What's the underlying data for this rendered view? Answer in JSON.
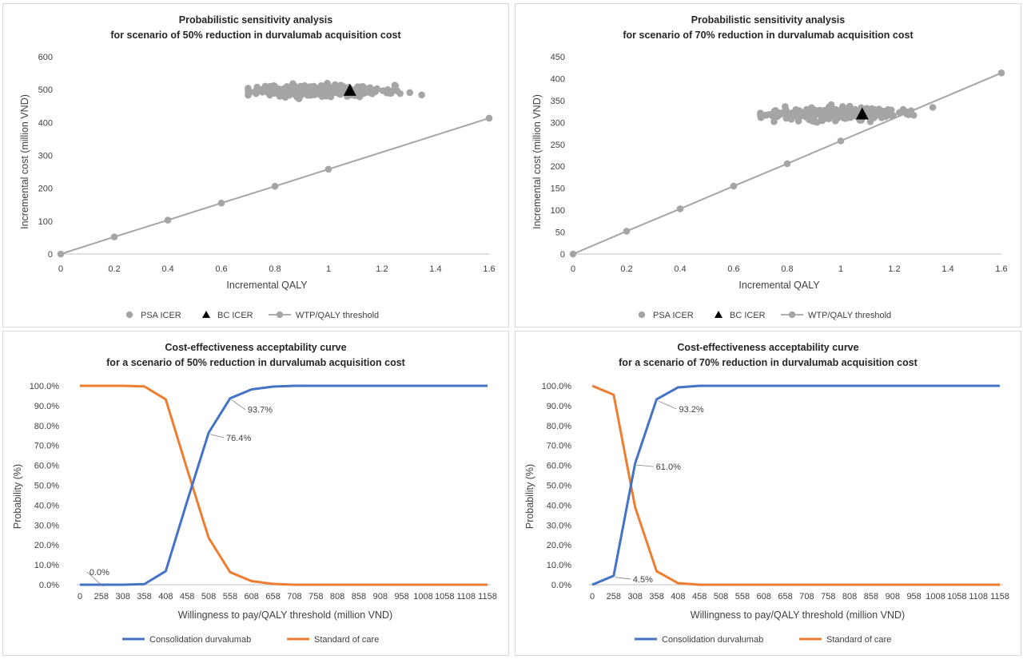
{
  "chart_data": [
    {
      "id": "p1",
      "type": "scatter",
      "title": [
        "Probabilistic sensitivity analysis",
        "for scenario of 50% reduction in durvalumab acquisition cost"
      ],
      "xlabel": "Incremental QALY",
      "ylabel": "Incremental cost (million VND)",
      "xlim": [
        0,
        1.6
      ],
      "ylim": [
        0,
        600
      ],
      "xticks": [
        0,
        0.2,
        0.4,
        0.6,
        0.8,
        1,
        1.2,
        1.4,
        1.6
      ],
      "yticks": [
        0,
        100,
        200,
        300,
        400,
        500,
        600
      ],
      "xtick_labels": [
        "0",
        "0.2",
        "0.4",
        "0.6",
        "0.8",
        "1",
        "1.2",
        "1.4",
        "1.6"
      ],
      "ytick_labels": [
        "0",
        "100",
        "200",
        "300",
        "400",
        "500",
        "600"
      ],
      "grid": false,
      "legend_position": "bottom",
      "psa_cloud": {
        "x_range": [
          0.7,
          1.37
        ],
        "y_center": 497,
        "y_spread": 15,
        "points": 320,
        "seed": 11
      },
      "series": [
        {
          "name": "PSA ICER",
          "kind": "points",
          "color": "#a5a5a5"
        },
        {
          "name": "BC ICER",
          "kind": "triangle",
          "color": "#000000",
          "x": [
            1.08
          ],
          "y": [
            496
          ]
        },
        {
          "name": "WTP/QALY threshold",
          "kind": "line-markers",
          "color": "#a5a5a5",
          "x": [
            0,
            0.2,
            0.4,
            0.6,
            0.8,
            1.0,
            1.6
          ],
          "y": [
            0,
            52,
            103,
            155,
            206,
            258,
            413
          ]
        }
      ]
    },
    {
      "id": "p2",
      "type": "scatter",
      "title": [
        "Probabilistic sensitivity analysis",
        "for scenario of 70% reduction in durvalumab acquisition cost"
      ],
      "xlabel": "Incremental QALY",
      "ylabel": "Incremental cost (million VND)",
      "xlim": [
        0,
        1.6
      ],
      "ylim": [
        0,
        450
      ],
      "xticks": [
        0,
        0.2,
        0.4,
        0.6,
        0.8,
        1,
        1.2,
        1.4,
        1.6
      ],
      "yticks": [
        0,
        50,
        100,
        150,
        200,
        250,
        300,
        350,
        400,
        450
      ],
      "xtick_labels": [
        "0",
        "0.2",
        "0.4",
        "0.6",
        "0.8",
        "1",
        "1.2",
        "1.4",
        "1.6"
      ],
      "ytick_labels": [
        "0",
        "50",
        "100",
        "150",
        "200",
        "250",
        "300",
        "350",
        "400",
        "450"
      ],
      "grid": false,
      "legend_position": "bottom",
      "psa_cloud": {
        "x_range": [
          0.7,
          1.37
        ],
        "y_center": 320,
        "y_spread": 12,
        "points": 320,
        "seed": 23
      },
      "series": [
        {
          "name": "PSA ICER",
          "kind": "points",
          "color": "#a5a5a5"
        },
        {
          "name": "BC ICER",
          "kind": "triangle",
          "color": "#000000",
          "x": [
            1.08
          ],
          "y": [
            318
          ]
        },
        {
          "name": "WTP/QALY threshold",
          "kind": "line-markers",
          "color": "#a5a5a5",
          "x": [
            0,
            0.2,
            0.4,
            0.6,
            0.8,
            1.0,
            1.6
          ],
          "y": [
            0,
            52,
            103,
            155,
            206,
            258,
            413
          ]
        }
      ]
    },
    {
      "id": "p3",
      "type": "line",
      "title": [
        "Cost-effectiveness acceptability curve",
        "for a scenario of 50% reduction in durvalumab acquisition cost"
      ],
      "xlabel": "Willingness to pay/QALY threshold (million VND)",
      "ylabel": "Probability (%)",
      "categories": [
        "0",
        "258",
        "308",
        "358",
        "408",
        "458",
        "508",
        "558",
        "608",
        "658",
        "708",
        "758",
        "808",
        "858",
        "908",
        "958",
        "1008",
        "1058",
        "1108",
        "1158"
      ],
      "ylim": [
        0,
        100
      ],
      "yticks": [
        0,
        10,
        20,
        30,
        40,
        50,
        60,
        70,
        80,
        90,
        100
      ],
      "ytick_labels": [
        "0.0%",
        "10.0%",
        "20.0%",
        "30.0%",
        "40.0%",
        "50.0%",
        "60.0%",
        "70.0%",
        "80.0%",
        "90.0%",
        "100.0%"
      ],
      "grid": false,
      "legend_position": "bottom",
      "series": [
        {
          "name": "Consolidation durvalumab",
          "color": "#4472c4",
          "values": [
            0,
            0,
            0,
            0.3,
            6.8,
            42,
            76.4,
            93.7,
            98.2,
            99.6,
            100,
            100,
            100,
            100,
            100,
            100,
            100,
            100,
            100,
            100
          ]
        },
        {
          "name": "Standard of care",
          "color": "#ed7d31",
          "values": [
            100,
            100,
            100,
            99.7,
            93.2,
            58,
            23.6,
            6.3,
            1.8,
            0.4,
            0,
            0,
            0,
            0,
            0,
            0,
            0,
            0,
            0,
            0
          ]
        }
      ],
      "annotations": [
        {
          "text": "0.0%",
          "index": 1,
          "value": 0,
          "dx": -15,
          "dy": -12
        },
        {
          "text": "76.4%",
          "index": 6,
          "value": 76.4,
          "dx": 22,
          "dy": 10
        },
        {
          "text": "93.7%",
          "index": 7,
          "value": 93.7,
          "dx": 22,
          "dy": 18
        }
      ]
    },
    {
      "id": "p4",
      "type": "line",
      "title": [
        "Cost-effectiveness acceptability curve",
        "for a scenario of 70% reduction in durvalumab acquisition cost"
      ],
      "xlabel": "Willingness to pay/QALY threshold (million VND)",
      "ylabel": "Probability (%)",
      "categories": [
        "0",
        "258",
        "308",
        "358",
        "408",
        "458",
        "508",
        "558",
        "608",
        "658",
        "708",
        "758",
        "808",
        "858",
        "908",
        "958",
        "1008",
        "1058",
        "1108",
        "1158"
      ],
      "ylim": [
        0,
        100
      ],
      "yticks": [
        0,
        10,
        20,
        30,
        40,
        50,
        60,
        70,
        80,
        90,
        100
      ],
      "ytick_labels": [
        "0.0%",
        "10.0%",
        "20.0%",
        "30.0%",
        "40.0%",
        "50.0%",
        "60.0%",
        "70.0%",
        "80.0%",
        "90.0%",
        "100.0%"
      ],
      "grid": false,
      "legend_position": "bottom",
      "series": [
        {
          "name": "Consolidation durvalumab",
          "color": "#4472c4",
          "values": [
            0,
            4.5,
            61.0,
            93.2,
            99.2,
            100,
            100,
            100,
            100,
            100,
            100,
            100,
            100,
            100,
            100,
            100,
            100,
            100,
            100,
            100
          ]
        },
        {
          "name": "Standard of care",
          "color": "#ed7d31",
          "values": [
            100,
            95.5,
            39.0,
            6.8,
            0.8,
            0,
            0,
            0,
            0,
            0,
            0,
            0,
            0,
            0,
            0,
            0,
            0,
            0,
            0,
            0
          ]
        }
      ],
      "annotations": [
        {
          "text": "4.5%",
          "index": 1,
          "value": 4.5,
          "dx": 24,
          "dy": 8
        },
        {
          "text": "61.0%",
          "index": 2,
          "value": 61.0,
          "dx": 26,
          "dy": 8
        },
        {
          "text": "93.2%",
          "index": 3,
          "value": 93.2,
          "dx": 28,
          "dy": 16
        }
      ]
    }
  ]
}
